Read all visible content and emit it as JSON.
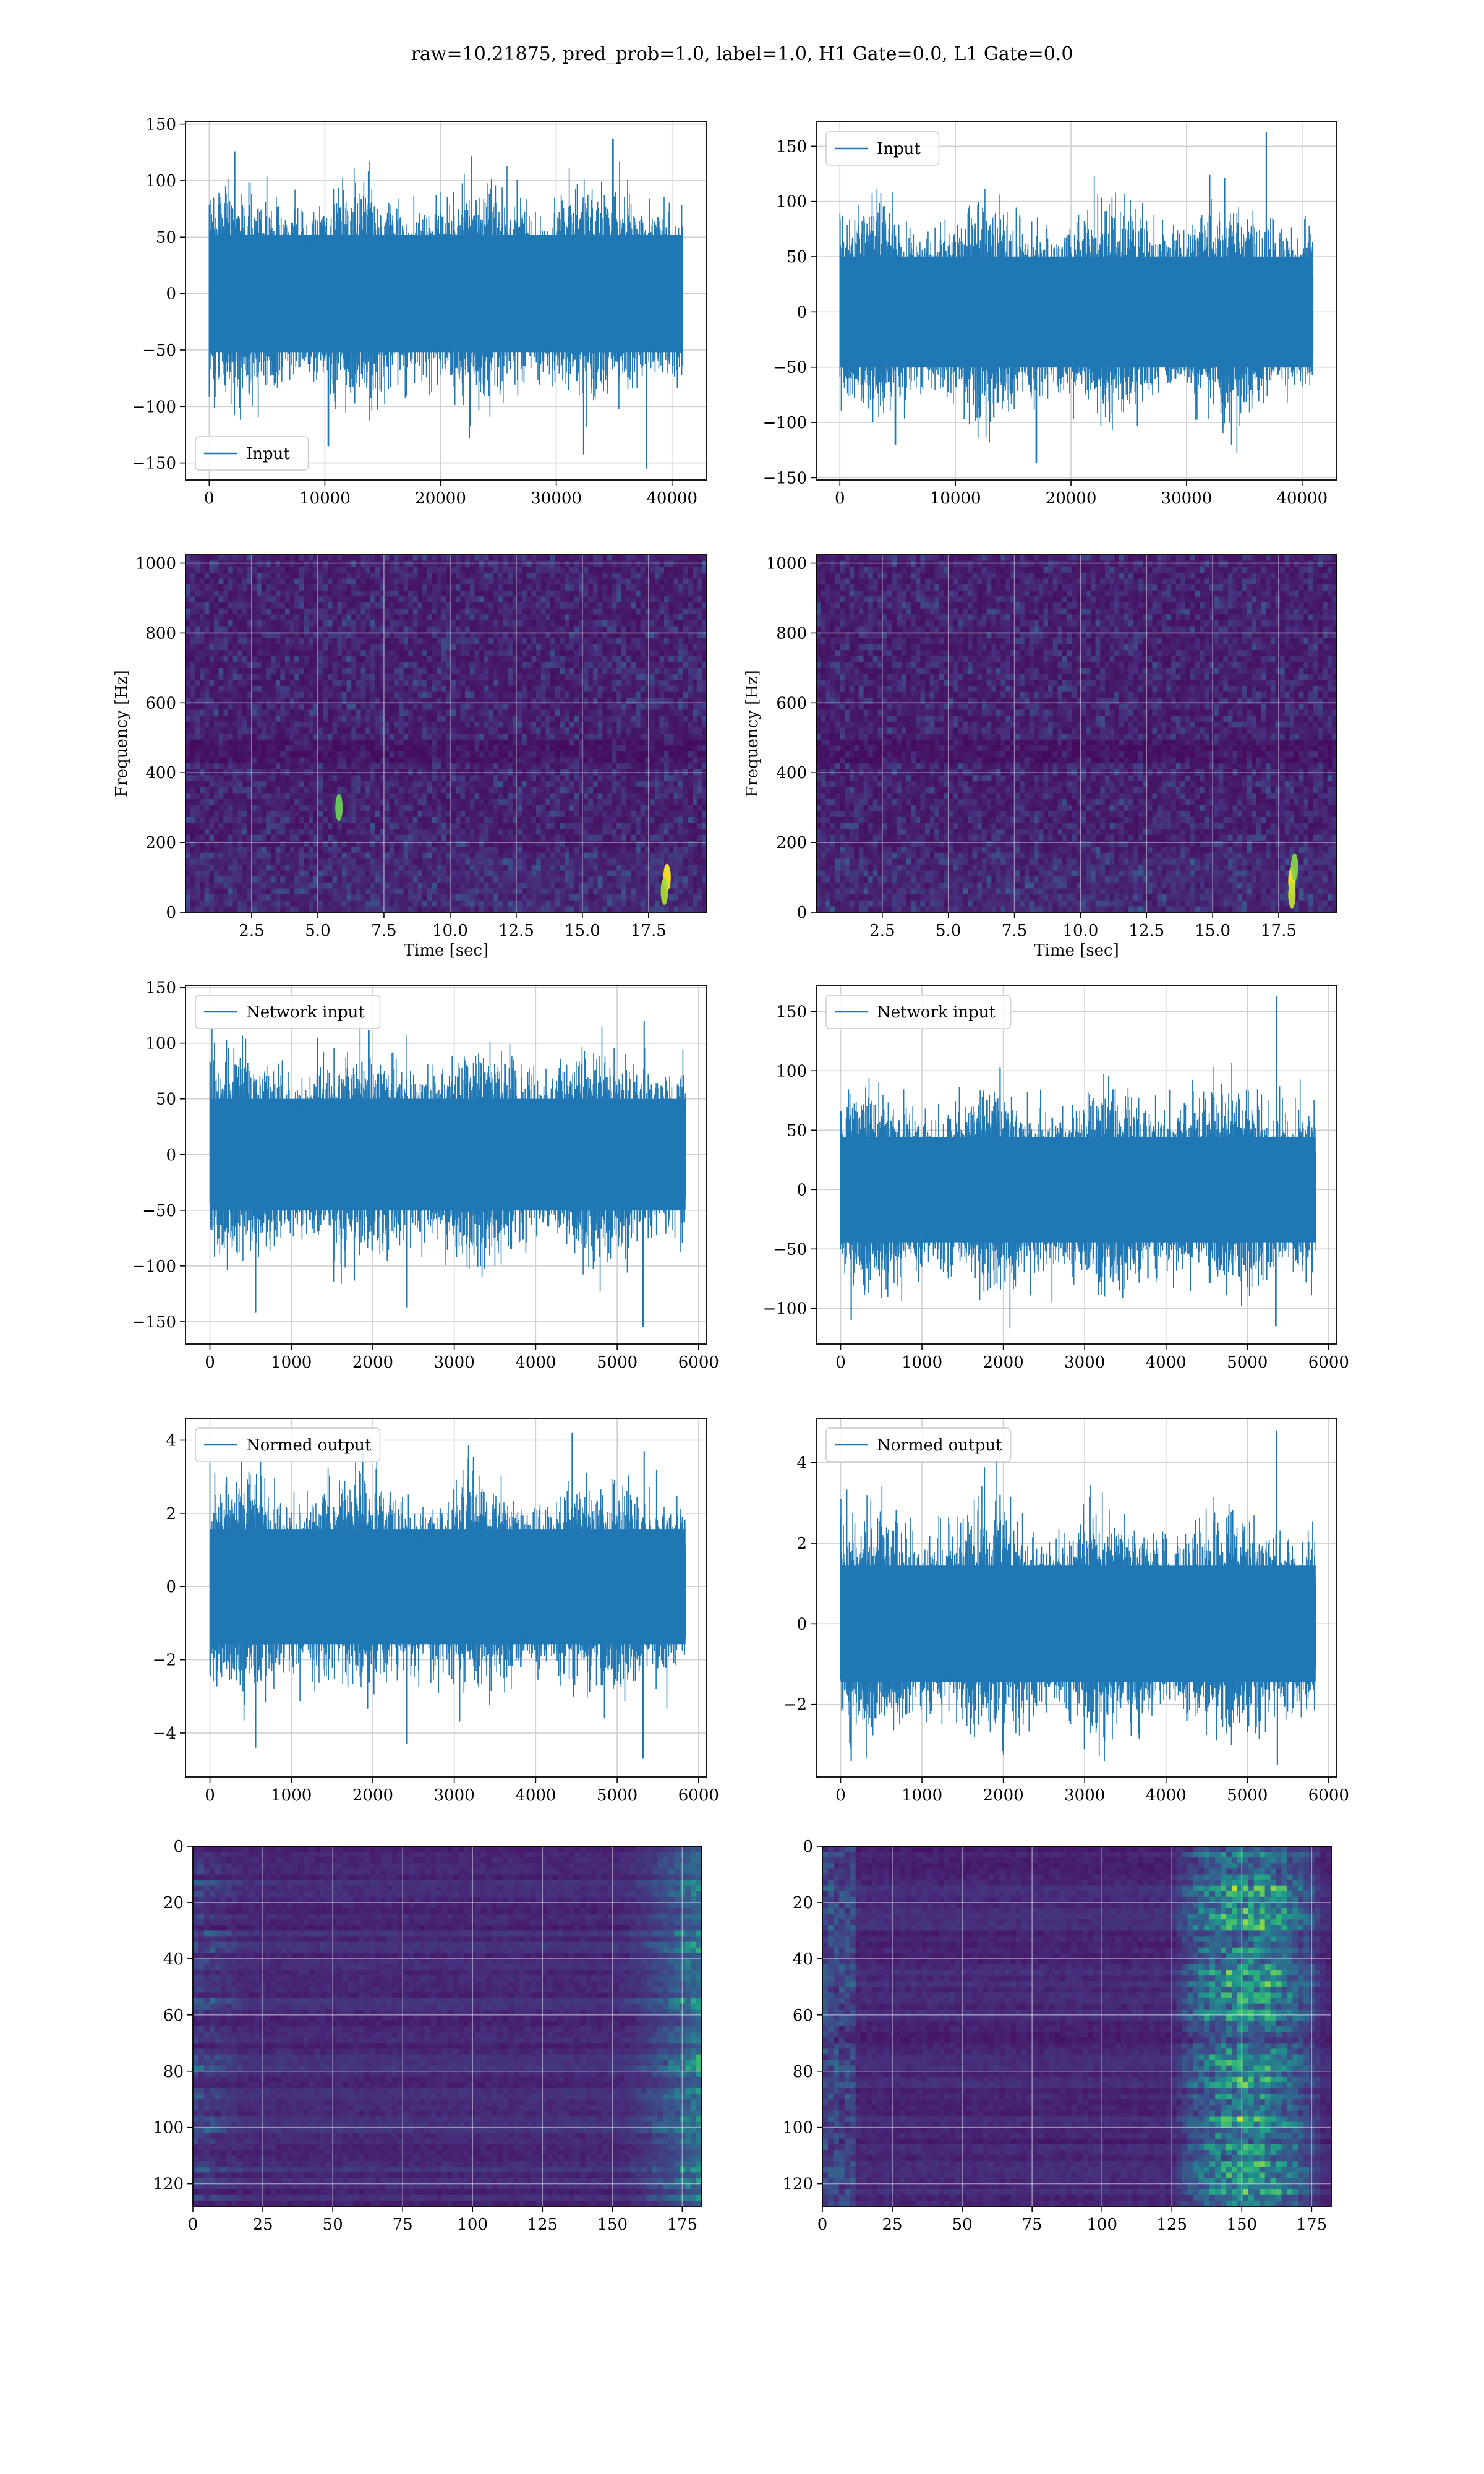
{
  "suptitle": "raw=10.21875, pred_prob=1.0, label=1.0, H1 Gate=0.0, L1 Gate=0.0",
  "colors": {
    "series": "#1f77b4",
    "grid": "#d0d0d0",
    "viridis_dark": "#440154"
  },
  "chart_data": [
    {
      "id": "input-h1",
      "type": "line",
      "seed": 11,
      "legend": "Input",
      "legend_pos": "lower-left",
      "xlim": [
        -2048,
        43008
      ],
      "ylim": [
        -165,
        152
      ],
      "x_ticks": [
        0,
        10000,
        20000,
        30000,
        40000
      ],
      "y_ticks": [
        -150,
        -100,
        -50,
        0,
        50,
        100,
        150
      ],
      "xlabel": "",
      "ylabel": "",
      "n_samples": 40960,
      "noise_sigma": 28,
      "grid": true,
      "peaks": [
        {
          "x": 37800,
          "y": -155
        },
        {
          "x": 34900,
          "y": 137
        },
        {
          "x": 2200,
          "y": 126
        },
        {
          "x": 10300,
          "y": -135
        }
      ]
    },
    {
      "id": "input-l1",
      "type": "line",
      "seed": 23,
      "legend": "Input",
      "legend_pos": "upper-left",
      "xlim": [
        -2048,
        43008
      ],
      "ylim": [
        -152,
        172
      ],
      "x_ticks": [
        0,
        10000,
        20000,
        30000,
        40000
      ],
      "y_ticks": [
        -150,
        -100,
        -50,
        0,
        50,
        100,
        150
      ],
      "xlabel": "",
      "ylabel": "",
      "n_samples": 40960,
      "noise_sigma": 27,
      "grid": true,
      "peaks": [
        {
          "x": 36900,
          "y": 163
        },
        {
          "x": 17000,
          "y": -137
        },
        {
          "x": 32000,
          "y": 124
        },
        {
          "x": 4800,
          "y": -120
        }
      ]
    },
    {
      "id": "spectrogram-h1",
      "type": "heatmap",
      "seed": 31,
      "cmap": "viridis",
      "xlim": [
        0,
        19.7
      ],
      "ylim": [
        0,
        1024
      ],
      "x_ticks": [
        2.5,
        5.0,
        7.5,
        10.0,
        12.5,
        15.0,
        17.5
      ],
      "y_ticks": [
        0,
        200,
        400,
        600,
        800,
        1000
      ],
      "xlabel": "Time [sec]",
      "ylabel": "Frequency [Hz]",
      "grid": true,
      "bright_spots": [
        {
          "x": 18.2,
          "y": 100,
          "strength": 1.0
        },
        {
          "x": 18.1,
          "y": 60,
          "strength": 0.7
        },
        {
          "x": 5.8,
          "y": 300,
          "strength": 0.5
        }
      ]
    },
    {
      "id": "spectrogram-l1",
      "type": "heatmap",
      "seed": 37,
      "cmap": "viridis",
      "xlim": [
        0,
        19.7
      ],
      "ylim": [
        0,
        1024
      ],
      "x_ticks": [
        2.5,
        5.0,
        7.5,
        10.0,
        12.5,
        15.0,
        17.5
      ],
      "y_ticks": [
        0,
        200,
        400,
        600,
        800,
        1000
      ],
      "xlabel": "Time [sec]",
      "ylabel": "Frequency [Hz]",
      "grid": true,
      "bright_spots": [
        {
          "x": 18.0,
          "y": 90,
          "strength": 1.0
        },
        {
          "x": 18.0,
          "y": 50,
          "strength": 0.8
        },
        {
          "x": 18.1,
          "y": 130,
          "strength": 0.6
        }
      ]
    },
    {
      "id": "network-input-h1",
      "type": "line",
      "seed": 41,
      "legend": "Network input",
      "legend_pos": "upper-left",
      "xlim": [
        -300,
        6100
      ],
      "ylim": [
        -170,
        152
      ],
      "x_ticks": [
        0,
        1000,
        2000,
        3000,
        4000,
        5000,
        6000
      ],
      "y_ticks": [
        -150,
        -100,
        -50,
        0,
        50,
        100,
        150
      ],
      "xlabel": "",
      "ylabel": "",
      "n_samples": 5840,
      "noise_sigma": 27,
      "grid": true,
      "peaks": [
        {
          "x": 5320,
          "y": -155
        },
        {
          "x": 5330,
          "y": 120
        },
        {
          "x": 2420,
          "y": -137
        },
        {
          "x": 560,
          "y": -142
        },
        {
          "x": 1950,
          "y": 112
        }
      ]
    },
    {
      "id": "network-input-l1",
      "type": "line",
      "seed": 53,
      "legend": "Network input",
      "legend_pos": "upper-left",
      "xlim": [
        -300,
        6100
      ],
      "ylim": [
        -130,
        172
      ],
      "x_ticks": [
        0,
        1000,
        2000,
        3000,
        4000,
        5000,
        6000
      ],
      "y_ticks": [
        -100,
        -50,
        0,
        50,
        100,
        150
      ],
      "xlabel": "",
      "ylabel": "",
      "n_samples": 5840,
      "noise_sigma": 24,
      "grid": true,
      "peaks": [
        {
          "x": 5360,
          "y": 163
        },
        {
          "x": 5350,
          "y": -115
        },
        {
          "x": 130,
          "y": -110
        },
        {
          "x": 1960,
          "y": 103
        }
      ]
    },
    {
      "id": "normed-output-h1",
      "type": "line",
      "seed": 61,
      "legend": "Normed output",
      "legend_pos": "upper-left",
      "xlim": [
        -300,
        6100
      ],
      "ylim": [
        -5.2,
        4.6
      ],
      "x_ticks": [
        0,
        1000,
        2000,
        3000,
        4000,
        5000,
        6000
      ],
      "y_ticks": [
        -4,
        -2,
        0,
        2,
        4
      ],
      "xlabel": "",
      "ylabel": "",
      "n_samples": 5840,
      "noise_sigma": 0.85,
      "grid": true,
      "peaks": [
        {
          "x": 5320,
          "y": -4.7
        },
        {
          "x": 4450,
          "y": 4.2
        },
        {
          "x": 5330,
          "y": 3.7
        },
        {
          "x": 560,
          "y": -4.4
        },
        {
          "x": 2420,
          "y": -4.3
        }
      ]
    },
    {
      "id": "normed-output-l1",
      "type": "line",
      "seed": 71,
      "legend": "Normed output",
      "legend_pos": "upper-left",
      "xlim": [
        -300,
        6100
      ],
      "ylim": [
        -3.8,
        5.1
      ],
      "x_ticks": [
        0,
        1000,
        2000,
        3000,
        4000,
        5000,
        6000
      ],
      "y_ticks": [
        -2,
        0,
        2,
        4
      ],
      "xlabel": "",
      "ylabel": "",
      "n_samples": 5840,
      "noise_sigma": 0.78,
      "grid": true,
      "peaks": [
        {
          "x": 5360,
          "y": 4.8
        },
        {
          "x": 5370,
          "y": -3.5
        },
        {
          "x": 130,
          "y": -3.4
        },
        {
          "x": 1960,
          "y": 3.2
        }
      ]
    },
    {
      "id": "feature-map-h1",
      "type": "heatmap",
      "seed": 83,
      "cmap": "viridis",
      "xlim": [
        0,
        182
      ],
      "ylim": [
        128,
        0
      ],
      "x_ticks": [
        0,
        25,
        50,
        75,
        100,
        125,
        150,
        175
      ],
      "y_ticks": [
        0,
        20,
        40,
        60,
        80,
        100,
        120
      ],
      "xlabel": "",
      "ylabel": "",
      "grid": true,
      "activity": "edges"
    },
    {
      "id": "feature-map-l1",
      "type": "heatmap",
      "seed": 97,
      "cmap": "viridis",
      "xlim": [
        0,
        182
      ],
      "ylim": [
        128,
        0
      ],
      "x_ticks": [
        0,
        25,
        50,
        75,
        100,
        125,
        150,
        175
      ],
      "y_ticks": [
        0,
        20,
        40,
        60,
        80,
        100,
        120
      ],
      "xlabel": "",
      "ylabel": "",
      "grid": true,
      "activity": "right-band"
    }
  ]
}
